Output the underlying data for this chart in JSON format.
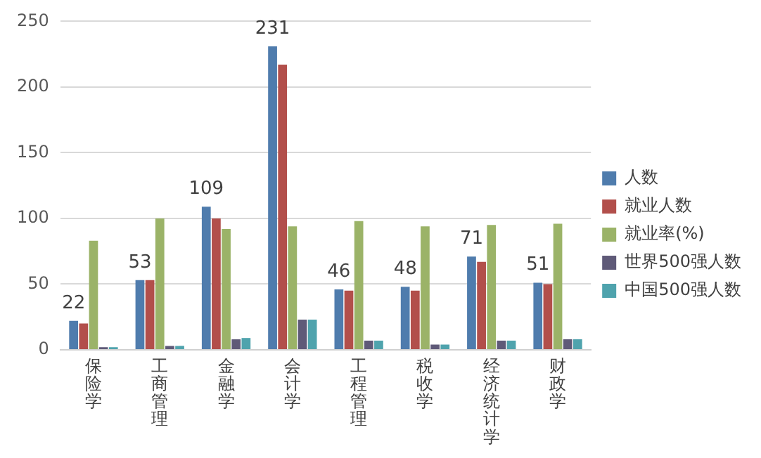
{
  "chart_data": {
    "type": "bar",
    "categories": [
      "保险学",
      "工商管理",
      "金融学",
      "会计学",
      "工程管理",
      "税收学",
      "经济统计学",
      "财政学"
    ],
    "series": [
      {
        "name": "人数",
        "color": "#4f7cad",
        "values": [
          22,
          53,
          109,
          231,
          46,
          48,
          71,
          51
        ],
        "value_labels": [
          "22",
          "53",
          "109",
          "231",
          "46",
          "48",
          "71",
          "51"
        ]
      },
      {
        "name": "就业人数",
        "color": "#b24f4b",
        "values": [
          20,
          53,
          100,
          217,
          45,
          45,
          67,
          50
        ]
      },
      {
        "name": "就业率(%)",
        "color": "#9bb368",
        "values": [
          83,
          100,
          92,
          94,
          98,
          94,
          95,
          96
        ]
      },
      {
        "name": "世界500强人数",
        "color": "#5f5a78",
        "values": [
          2,
          3,
          8,
          23,
          7,
          4,
          7,
          8
        ]
      },
      {
        "name": "中国500强人数",
        "color": "#4fa3ad",
        "values": [
          2,
          3,
          9,
          23,
          7,
          4,
          7,
          8
        ]
      }
    ],
    "ylim": [
      0,
      250
    ],
    "yticks": [
      0,
      50,
      100,
      150,
      200,
      250
    ],
    "grid": "y",
    "legend": "right"
  }
}
